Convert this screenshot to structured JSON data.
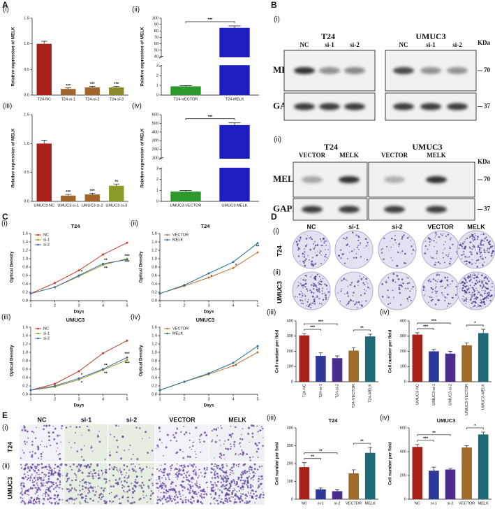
{
  "panel_letters": [
    "A",
    "B",
    "C",
    "D",
    "E"
  ],
  "blots": {
    "i": {
      "label": "(i)",
      "groups": [
        "T24",
        "UMUC3"
      ],
      "lanes": [
        "NC",
        "si-1",
        "si-2",
        "NC",
        "si-1",
        "si-2"
      ],
      "unit": "KDa",
      "rows": [
        "MELK",
        "GAPDH"
      ],
      "markers": [
        "70",
        "37"
      ]
    },
    "ii": {
      "label": "(ii)",
      "groups": [
        "T24",
        "UMUC3"
      ],
      "lanes": [
        "VECTOR",
        "MELK",
        "VECTOR",
        "MELK"
      ],
      "unit": "KDa",
      "rows": [
        "MELK",
        "GAPDH"
      ],
      "markers": [
        "70",
        "37"
      ]
    }
  },
  "colony": {
    "columns": [
      "NC",
      "si-1",
      "si-2",
      "VECTOR",
      "MELK"
    ],
    "rows": [
      {
        "label": "(i)",
        "name": "T24"
      },
      {
        "label": "(ii)",
        "name": "UMUC3"
      }
    ]
  },
  "transwell": {
    "columns": [
      "NC",
      "si-1",
      "si-2",
      "VECTOR",
      "MELK"
    ],
    "rows": [
      {
        "label": "(i)",
        "name": "T24"
      },
      {
        "label": "(ii)",
        "name": "UMUC3"
      }
    ]
  },
  "chart_data": [
    {
      "type": "bar",
      "panel": "(i)",
      "ylabel": "Relative expression of MELK",
      "categories": [
        "T24-NC",
        "T24-si-1",
        "T24-si-2",
        "T24-si-3"
      ],
      "values": [
        1.0,
        0.12,
        0.15,
        0.15
      ],
      "errors": [
        0.05,
        0.02,
        0.02,
        0.02
      ],
      "colors": [
        "#a8201a",
        "#a0652a",
        "#a0652a",
        "#8c8a2a"
      ],
      "sig": [
        null,
        "***",
        "***",
        "***"
      ],
      "ylim": [
        0,
        1.5
      ],
      "yticks": [
        {
          "value": 0,
          "label": "0.0"
        },
        0.5,
        {
          "value": 1,
          "label": "1.0"
        },
        1.5
      ]
    },
    {
      "type": "bar",
      "panel": "(ii)",
      "ylabel": "Relative expression of MELK",
      "categories": [
        "T24-VECTOR",
        "T24-MELK"
      ],
      "values": [
        0.9,
        85
      ],
      "errors": [
        0.08,
        3
      ],
      "colors": [
        "#2e9a2e",
        "#1f1fbf"
      ],
      "comparisons": [
        {
          "pair": [
            0,
            1
          ],
          "label": "***"
        }
      ],
      "segments": [
        {
          "ylim": [
            0,
            3
          ],
          "yticks": [
            0,
            1,
            2,
            3
          ]
        },
        {
          "ylim": [
            40,
            100
          ],
          "yticks": [
            40,
            50,
            60,
            70,
            80,
            90,
            100
          ]
        }
      ]
    },
    {
      "type": "bar",
      "panel": "(iii)",
      "ylabel": "Relative expression of MELK",
      "categories": [
        "UMUC3-NC",
        "UMUC3-si-1",
        "UMUC3-si-2",
        "UMUC3-si-3"
      ],
      "values": [
        1.0,
        0.1,
        0.12,
        0.27
      ],
      "errors": [
        0.06,
        0.02,
        0.02,
        0.03
      ],
      "colors": [
        "#a8201a",
        "#a0652a",
        "#a0652a",
        "#8c9a2a"
      ],
      "sig": [
        null,
        "***",
        "***",
        "**"
      ],
      "ylim": [
        0,
        1.5
      ],
      "yticks": [
        {
          "value": 0,
          "label": "0.0"
        },
        0.5,
        {
          "value": 1,
          "label": "1.0"
        },
        1.5
      ]
    },
    {
      "type": "bar",
      "panel": "(iv)",
      "ylabel": "Relative expression of MELK",
      "categories": [
        "UMUC3-VECTOR",
        "UMUC3-MELK"
      ],
      "values": [
        0.9,
        480
      ],
      "errors": [
        0.08,
        25
      ],
      "colors": [
        "#2e9a2e",
        "#1f1fbf"
      ],
      "comparisons": [
        {
          "pair": [
            0,
            1
          ],
          "label": "***"
        }
      ],
      "segments": [
        {
          "ylim": [
            0,
            3
          ],
          "yticks": [
            0,
            1,
            2,
            3
          ]
        },
        {
          "ylim": [
            100,
            600
          ],
          "yticks": [
            100,
            200,
            300,
            400,
            500,
            600
          ]
        }
      ]
    },
    {
      "type": "line",
      "panel": "(i)",
      "title": "T24",
      "xlabel": "Days",
      "ylabel": "Optical Density",
      "legend": "upper left",
      "x": [
        1,
        2,
        3,
        4,
        5
      ],
      "xlim": [
        1,
        5
      ],
      "xticks": [
        1,
        2,
        3,
        4,
        5
      ],
      "ylim": [
        0,
        1.6
      ],
      "yticks": [
        {
          "value": 0,
          "label": "0.0"
        },
        0.2,
        0.4,
        0.6,
        0.8,
        {
          "value": 1,
          "label": "1.0"
        },
        1.2,
        1.4,
        1.6
      ],
      "series": [
        {
          "name": "NC",
          "color": "#c0392b",
          "values": [
            0.17,
            0.42,
            0.72,
            1.1,
            1.38
          ],
          "sig": [
            null,
            null,
            null,
            null,
            null
          ]
        },
        {
          "name": "si-1",
          "color": "#9c9c1c",
          "values": [
            0.17,
            0.32,
            0.58,
            0.85,
            1.0
          ],
          "sig": [
            null,
            null,
            null,
            "**",
            "***"
          ]
        },
        {
          "name": "si-2",
          "color": "#3f6aa8",
          "values": [
            0.17,
            0.32,
            0.6,
            0.88,
            0.98
          ],
          "sig": [
            null,
            null,
            "*",
            "**",
            "***"
          ]
        }
      ]
    },
    {
      "type": "line",
      "panel": "(ii)",
      "title": "T24",
      "xlabel": "Days",
      "ylabel": "Optical Density",
      "legend": "upper left",
      "x": [
        1,
        2,
        3,
        4,
        5
      ],
      "xlim": [
        1,
        5
      ],
      "xticks": [
        1,
        2,
        3,
        4,
        5
      ],
      "ylim": [
        0,
        1.6
      ],
      "yticks": [
        {
          "value": 0,
          "label": "0.0"
        },
        0.2,
        0.4,
        0.6,
        0.8,
        {
          "value": 1,
          "label": "1.0"
        },
        1.2,
        1.4,
        1.6
      ],
      "series": [
        {
          "name": "VECTOR",
          "color": "#b87333",
          "values": [
            0.17,
            0.35,
            0.55,
            0.78,
            1.15
          ],
          "sig": [
            null,
            null,
            null,
            null,
            null
          ]
        },
        {
          "name": "MELK",
          "color": "#2a6f8f",
          "values": [
            0.17,
            0.37,
            0.65,
            0.92,
            1.37
          ],
          "sig": [
            null,
            null,
            "*",
            "*",
            "**"
          ]
        }
      ]
    },
    {
      "type": "line",
      "panel": "(iii)",
      "title": "UMUC3",
      "xlabel": "Days",
      "ylabel": "Optical Density",
      "legend": "upper left",
      "x": [
        1,
        2,
        3,
        4,
        5
      ],
      "xlim": [
        1,
        5
      ],
      "xticks": [
        1,
        2,
        3,
        4,
        5
      ],
      "ylim": [
        0,
        1.6
      ],
      "yticks": [
        {
          "value": 0,
          "label": "0.0"
        },
        0.2,
        0.4,
        0.6,
        0.8,
        {
          "value": 1,
          "label": "1.0"
        },
        1.2,
        1.4,
        1.6
      ],
      "series": [
        {
          "name": "NC",
          "color": "#c0392b",
          "values": [
            0.1,
            0.25,
            0.55,
            0.98,
            1.28
          ],
          "sig": [
            null,
            null,
            null,
            null,
            null
          ]
        },
        {
          "name": "si-1",
          "color": "#9c9c1c",
          "values": [
            0.1,
            0.18,
            0.35,
            0.58,
            0.82
          ],
          "sig": [
            null,
            null,
            "*",
            "**",
            "***"
          ]
        },
        {
          "name": "si-2",
          "color": "#3f6aa8",
          "values": [
            0.1,
            0.2,
            0.38,
            0.6,
            0.88
          ],
          "sig": [
            null,
            null,
            "*",
            "**",
            "***"
          ]
        }
      ]
    },
    {
      "type": "line",
      "panel": "(iv)",
      "title": "UMUC3",
      "xlabel": "Days",
      "ylabel": "Optical Density",
      "legend": "upper left",
      "x": [
        1,
        2,
        3,
        4,
        5
      ],
      "xlim": [
        1,
        5
      ],
      "xticks": [
        1,
        2,
        3,
        4,
        5
      ],
      "ylim": [
        0,
        1.6
      ],
      "yticks": [
        {
          "value": 0,
          "label": "0.0"
        },
        0.2,
        0.4,
        0.6,
        0.8,
        {
          "value": 1,
          "label": "1.0"
        },
        1.2,
        1.4,
        1.6
      ],
      "series": [
        {
          "name": "VECTOR",
          "color": "#b87333",
          "values": [
            0.1,
            0.3,
            0.48,
            0.68,
            1.0
          ],
          "sig": [
            null,
            null,
            null,
            null,
            null
          ]
        },
        {
          "name": "MELK",
          "color": "#2a6f8f",
          "values": [
            0.1,
            0.3,
            0.5,
            0.75,
            1.15
          ],
          "sig": [
            null,
            null,
            null,
            "*",
            "*"
          ]
        }
      ]
    },
    {
      "type": "bar",
      "panel": "(iii)",
      "ylabel": "Cell number per field",
      "categories": [
        "T24-NC",
        "T24-si-1",
        "T24-si-2",
        "T24-VECTOR",
        "T24-MELK"
      ],
      "values": [
        305,
        170,
        155,
        205,
        298
      ],
      "errors": [
        12,
        20,
        15,
        20,
        15
      ],
      "colors": [
        "#a8201a",
        "#2e3a9a",
        "#4b2d8f",
        "#a06a2a",
        "#1f6a78"
      ],
      "comparisons": [
        {
          "pair": [
            0,
            1
          ],
          "label": "***"
        },
        {
          "pair": [
            0,
            2
          ],
          "label": "***"
        },
        {
          "pair": [
            3,
            4
          ],
          "label": "**"
        }
      ],
      "ylim": [
        0,
        400
      ],
      "yticks": [
        0,
        100,
        200,
        300,
        400
      ]
    },
    {
      "type": "bar",
      "panel": "(iv)",
      "ylabel": "Cell number per field",
      "categories": [
        "UMUC3-NC",
        "UMUC3-si-1",
        "UMUC3-si-2",
        "UMUC3-VECTOR",
        "UMUC3-MELK"
      ],
      "values": [
        310,
        200,
        185,
        240,
        320
      ],
      "errors": [
        12,
        12,
        15,
        15,
        25
      ],
      "colors": [
        "#a8201a",
        "#2e3a9a",
        "#4b2d8f",
        "#a06a2a",
        "#1f6a78"
      ],
      "comparisons": [
        {
          "pair": [
            0,
            1
          ],
          "label": "***"
        },
        {
          "pair": [
            0,
            2
          ],
          "label": "***"
        },
        {
          "pair": [
            3,
            4
          ],
          "label": "*"
        }
      ],
      "ylim": [
        0,
        400
      ],
      "yticks": [
        0,
        100,
        200,
        300,
        400
      ]
    },
    {
      "type": "bar",
      "panel": "(iii)",
      "title": "T24",
      "ylabel": "Cell number per field",
      "categories": [
        "NC",
        "si-1",
        "si-2",
        "VECTOR",
        "MELK"
      ],
      "values": [
        180,
        55,
        45,
        145,
        260
      ],
      "errors": [
        25,
        8,
        8,
        20,
        30
      ],
      "colors": [
        "#a8201a",
        "#2e3a9a",
        "#4b2d8f",
        "#a06a2a",
        "#1f6a78"
      ],
      "comparisons": [
        {
          "pair": [
            0,
            1
          ],
          "label": "**"
        },
        {
          "pair": [
            0,
            2
          ],
          "label": "**"
        },
        {
          "pair": [
            3,
            4
          ],
          "label": "**"
        }
      ],
      "ylim": [
        0,
        400
      ],
      "yticks": [
        0,
        100,
        200,
        300,
        400
      ]
    },
    {
      "type": "bar",
      "panel": "(iv)",
      "title": "UMUC3",
      "ylabel": "Cell number per field",
      "categories": [
        "NC",
        "si-1",
        "si-2",
        "VECTOR",
        "MELK"
      ],
      "values": [
        440,
        240,
        250,
        435,
        545
      ],
      "errors": [
        20,
        30,
        10,
        15,
        20
      ],
      "colors": [
        "#a8201a",
        "#2e3a9a",
        "#4b2d8f",
        "#a06a2a",
        "#1f6a78"
      ],
      "comparisons": [
        {
          "pair": [
            0,
            1
          ],
          "label": "***"
        },
        {
          "pair": [
            0,
            2
          ],
          "label": "**"
        },
        {
          "pair": [
            3,
            4
          ],
          "label": "*"
        }
      ],
      "ylim": [
        0,
        600
      ],
      "yticks": [
        0,
        200,
        400,
        600
      ]
    }
  ]
}
